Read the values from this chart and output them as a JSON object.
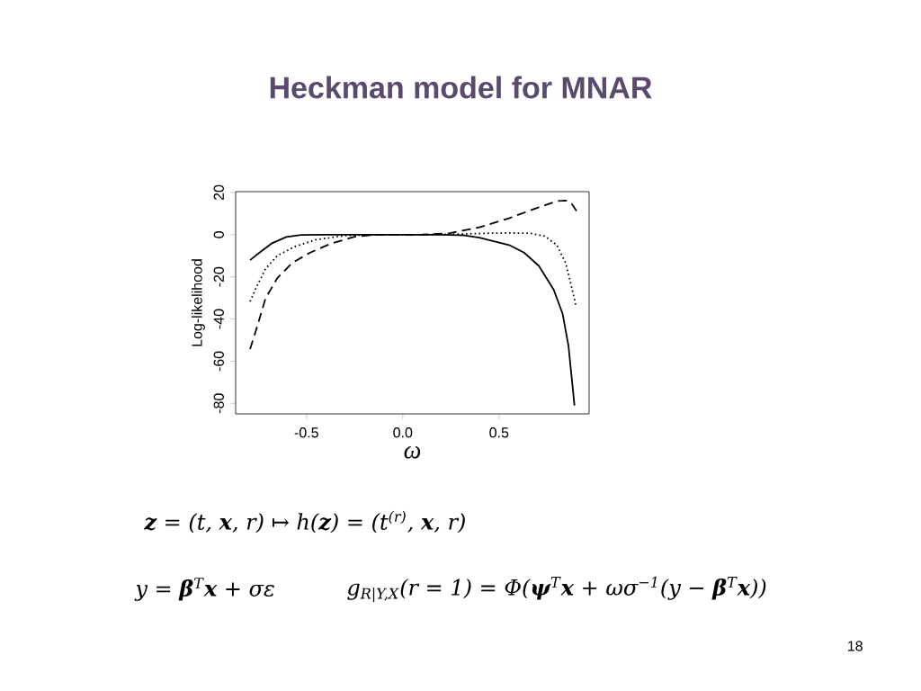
{
  "chart_data": {
    "type": "line",
    "title": "Heckman model for MNAR",
    "xlabel": "ω",
    "ylabel": "Log-likelihood",
    "xlim": [
      -0.868,
      0.968
    ],
    "ylim": [
      -85,
      20.4
    ],
    "xticks": [
      {
        "value": -0.5,
        "label": "-0.5"
      },
      {
        "value": 0,
        "label": "0.0"
      },
      {
        "value": 0.5,
        "label": "0.5"
      }
    ],
    "yticks": [
      -80,
      -60,
      -40,
      -20,
      0,
      20
    ],
    "marker": "none",
    "series": [
      {
        "color": "#000000",
        "line_style": "solid",
        "x": [
          -0.793,
          -0.744,
          -0.682,
          -0.605,
          -0.528,
          -0.4,
          -0.2,
          0.0,
          0.2,
          0.32,
          0.398,
          0.552,
          0.63,
          0.707,
          0.784,
          0.83,
          0.861,
          0.892
        ],
        "values": [
          -12.1,
          -8.5,
          -4.2,
          -1.1,
          -0.1,
          0,
          0,
          0,
          0,
          -0.3,
          -1.4,
          -4.9,
          -8.5,
          -14.8,
          -26.1,
          -37.4,
          -52.9,
          -81
        ]
      },
      {
        "color": "#000000",
        "line_style": "dotted",
        "x": [
          -0.793,
          -0.759,
          -0.713,
          -0.651,
          -0.559,
          -0.451,
          -0.296,
          -0.1,
          0.1,
          0.3,
          0.45,
          0.552,
          0.66,
          0.738,
          0.8,
          0.846,
          0.877,
          0.9
        ],
        "values": [
          -31.7,
          -24.7,
          -16.2,
          -9.9,
          -5.6,
          -2.4,
          -0.4,
          0,
          0,
          0.3,
          0.7,
          0.8,
          0.7,
          -0.7,
          -4.9,
          -13.4,
          -24.7,
          -33.9
        ]
      },
      {
        "color": "#000000",
        "line_style": "dashed",
        "x": [
          -0.793,
          -0.759,
          -0.713,
          -0.651,
          -0.574,
          -0.481,
          -0.373,
          -0.25,
          -0.142,
          0.09,
          0.244,
          0.398,
          0.552,
          0.707,
          0.8,
          0.846,
          0.877,
          0.907
        ],
        "values": [
          -54.3,
          -44.4,
          -30.3,
          -20.5,
          -13.4,
          -8.5,
          -4.2,
          -1,
          0,
          0,
          0.7,
          3.5,
          7.8,
          13,
          15.9,
          16.2,
          14.8,
          10.6
        ]
      }
    ],
    "annotations": [
      "**z** = (t, **x**, r) ↦ h(**z**) = (t$^{(r)}$, **x**, r)",
      "y = **β**$^{T}$**x** + σε",
      "g$_{R|Y,X}$(r = 1) = Φ(**ψ**$^{T}$**x** + ωσ$^{−1}$(y − **β**$^{T}$**x**))",
      "18"
    ]
  }
}
